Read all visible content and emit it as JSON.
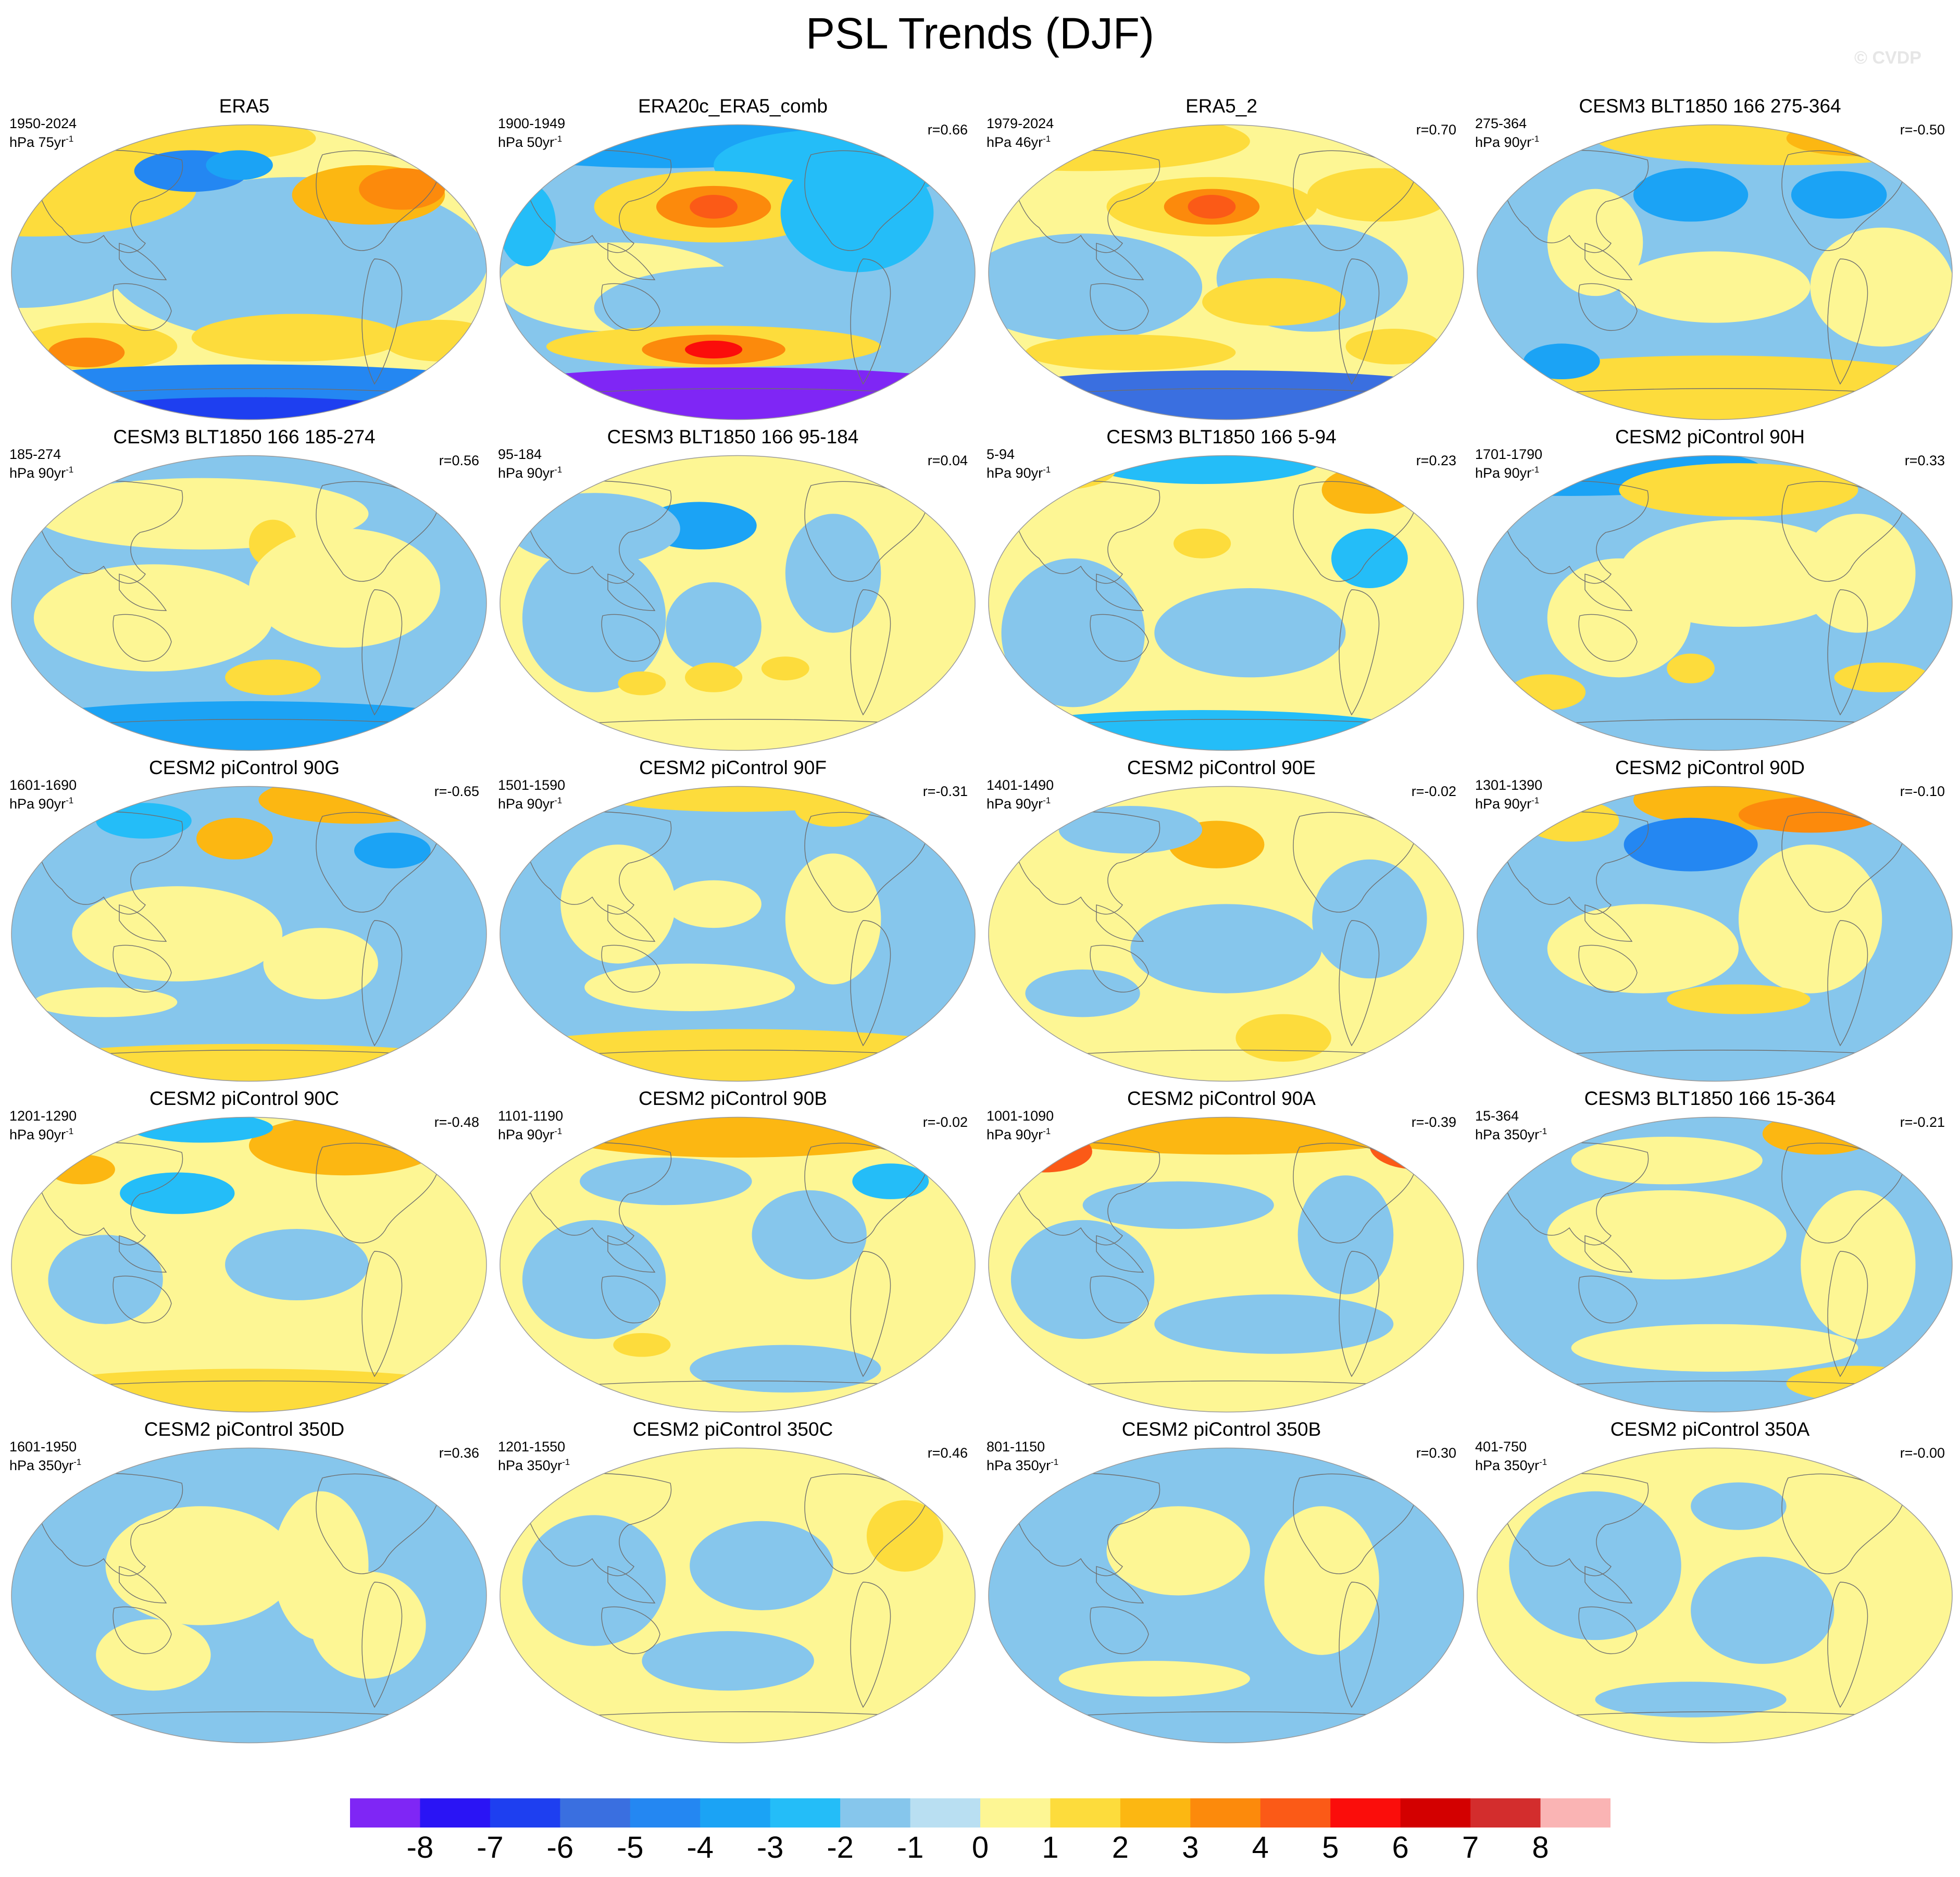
{
  "title": "PSL Trends (DJF)",
  "watermark": "© CVDP",
  "units_prefix": "hPa",
  "units_suffix": "yr",
  "units_exponent": "-1",
  "panels": [
    {
      "title": "ERA5",
      "years": "1950-2024",
      "period": "75",
      "corr": "",
      "pattern": "era5"
    },
    {
      "title": "ERA20c_ERA5_comb",
      "years": "1900-1949",
      "period": "50",
      "corr": "r=0.66",
      "pattern": "era20c"
    },
    {
      "title": "ERA5_2",
      "years": "1979-2024",
      "period": "46",
      "corr": "r=0.70",
      "pattern": "era5b"
    },
    {
      "title": "CESM3 BLT1850 166 275-364",
      "years": "275-364",
      "period": "90",
      "corr": "r=-0.50",
      "pattern": "c1"
    },
    {
      "title": "CESM3 BLT1850 166 185-274",
      "years": "185-274",
      "period": "90",
      "corr": "r=0.56",
      "pattern": "c2"
    },
    {
      "title": "CESM3 BLT1850 166 95-184",
      "years": "95-184",
      "period": "90",
      "corr": "r=0.04",
      "pattern": "c3"
    },
    {
      "title": "CESM3 BLT1850 166 5-94",
      "years": "5-94",
      "period": "90",
      "corr": "r=0.23",
      "pattern": "c4"
    },
    {
      "title": "CESM2 piControl 90H",
      "years": "1701-1790",
      "period": "90",
      "corr": "r=0.33",
      "pattern": "c5"
    },
    {
      "title": "CESM2 piControl 90G",
      "years": "1601-1690",
      "period": "90",
      "corr": "r=-0.65",
      "pattern": "c6"
    },
    {
      "title": "CESM2 piControl 90F",
      "years": "1501-1590",
      "period": "90",
      "corr": "r=-0.31",
      "pattern": "c7"
    },
    {
      "title": "CESM2 piControl 90E",
      "years": "1401-1490",
      "period": "90",
      "corr": "r=-0.02",
      "pattern": "c8"
    },
    {
      "title": "CESM2 piControl 90D",
      "years": "1301-1390",
      "period": "90",
      "corr": "r=-0.10",
      "pattern": "c9"
    },
    {
      "title": "CESM2 piControl 90C",
      "years": "1201-1290",
      "period": "90",
      "corr": "r=-0.48",
      "pattern": "c10"
    },
    {
      "title": "CESM2 piControl 90B",
      "years": "1101-1190",
      "period": "90",
      "corr": "r=-0.02",
      "pattern": "c11"
    },
    {
      "title": "CESM2 piControl 90A",
      "years": "1001-1090",
      "period": "90",
      "corr": "r=-0.39",
      "pattern": "c12"
    },
    {
      "title": "CESM3 BLT1850 166 15-364",
      "years": "15-364",
      "period": "350",
      "corr": "r=-0.21",
      "pattern": "c13"
    },
    {
      "title": "CESM2 piControl 350D",
      "years": "1601-1950",
      "period": "350",
      "corr": "r=0.36",
      "pattern": "l1"
    },
    {
      "title": "CESM2 piControl 350C",
      "years": "1201-1550",
      "period": "350",
      "corr": "r=0.46",
      "pattern": "l2"
    },
    {
      "title": "CESM2 piControl 350B",
      "years": "801-1150",
      "period": "350",
      "corr": "r=0.30",
      "pattern": "l3"
    },
    {
      "title": "CESM2 piControl 350A",
      "years": "401-750",
      "period": "350",
      "corr": "r=-0.00",
      "pattern": "l4"
    }
  ],
  "colorbar": {
    "labels": [
      "-8",
      "-7",
      "-6",
      "-5",
      "-4",
      "-3",
      "-2",
      "-1",
      "0",
      "1",
      "2",
      "3",
      "4",
      "5",
      "6",
      "7",
      "8"
    ],
    "colors": [
      "#7f26f5",
      "#2a14f5",
      "#1e3ff0",
      "#3a6fe0",
      "#2487f2",
      "#1ba3f5",
      "#24bdf8",
      "#86c6ec",
      "#b9dff2",
      "#fdf694",
      "#fddc3c",
      "#fcb712",
      "#fc8a0c",
      "#fb5a17",
      "#fb0d0b",
      "#d30000",
      "#d32d2d",
      "#fab4b4"
    ]
  }
}
